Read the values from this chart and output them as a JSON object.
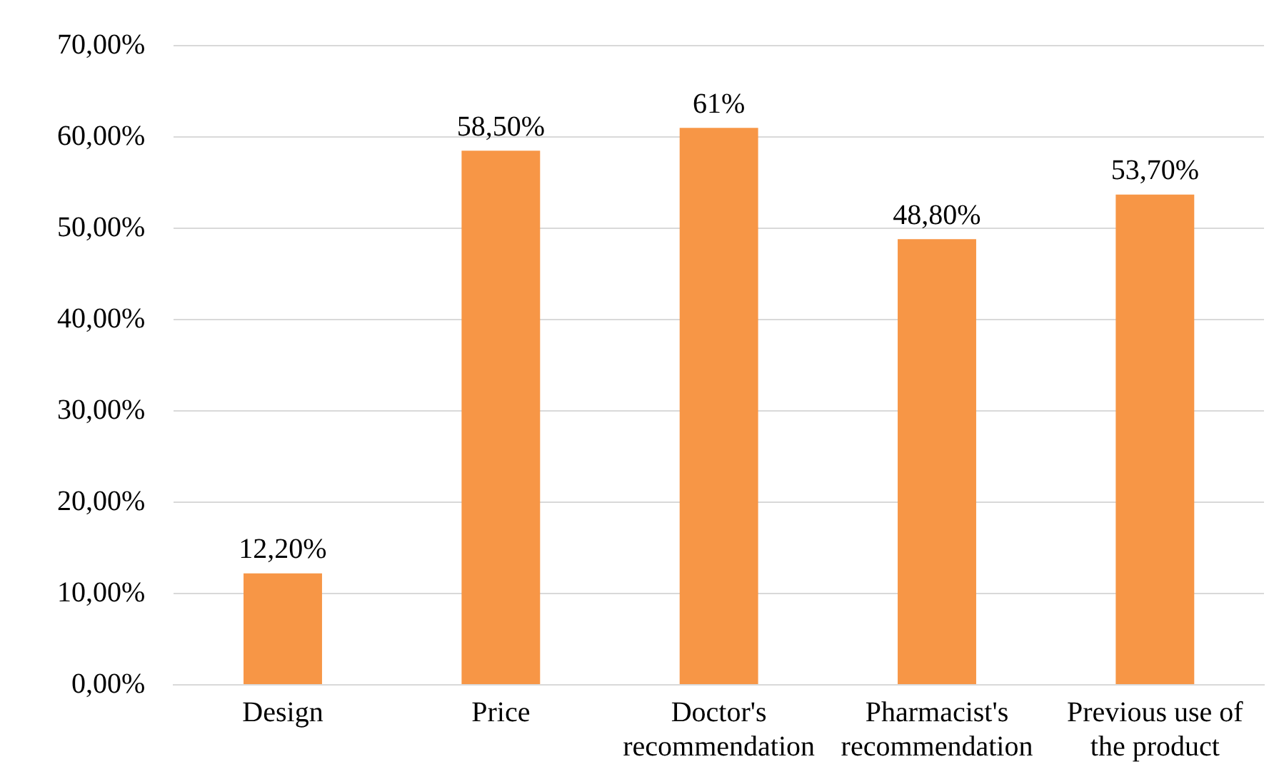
{
  "chart_data": {
    "type": "bar",
    "categories": [
      "Design",
      "Price",
      "Doctor's recommendation",
      "Pharmacist's recommendation",
      "Previous use of the product"
    ],
    "values": [
      12.2,
      58.5,
      61,
      48.8,
      53.7
    ],
    "value_labels": [
      "12,20%",
      "58,50%",
      "61%",
      "48,80%",
      "53,70%"
    ],
    "color": "#f79646",
    "ylim": [
      0,
      70
    ],
    "yticks": [
      {
        "value": 0,
        "label": "0,00%"
      },
      {
        "value": 10,
        "label": "10,00%"
      },
      {
        "value": 20,
        "label": "20,00%"
      },
      {
        "value": 30,
        "label": "30,00%"
      },
      {
        "value": 40,
        "label": "40,00%"
      },
      {
        "value": 50,
        "label": "50,00%"
      },
      {
        "value": 60,
        "label": "60,00%"
      },
      {
        "value": 70,
        "label": "70,00%"
      }
    ],
    "grid": "y",
    "legend": false
  }
}
